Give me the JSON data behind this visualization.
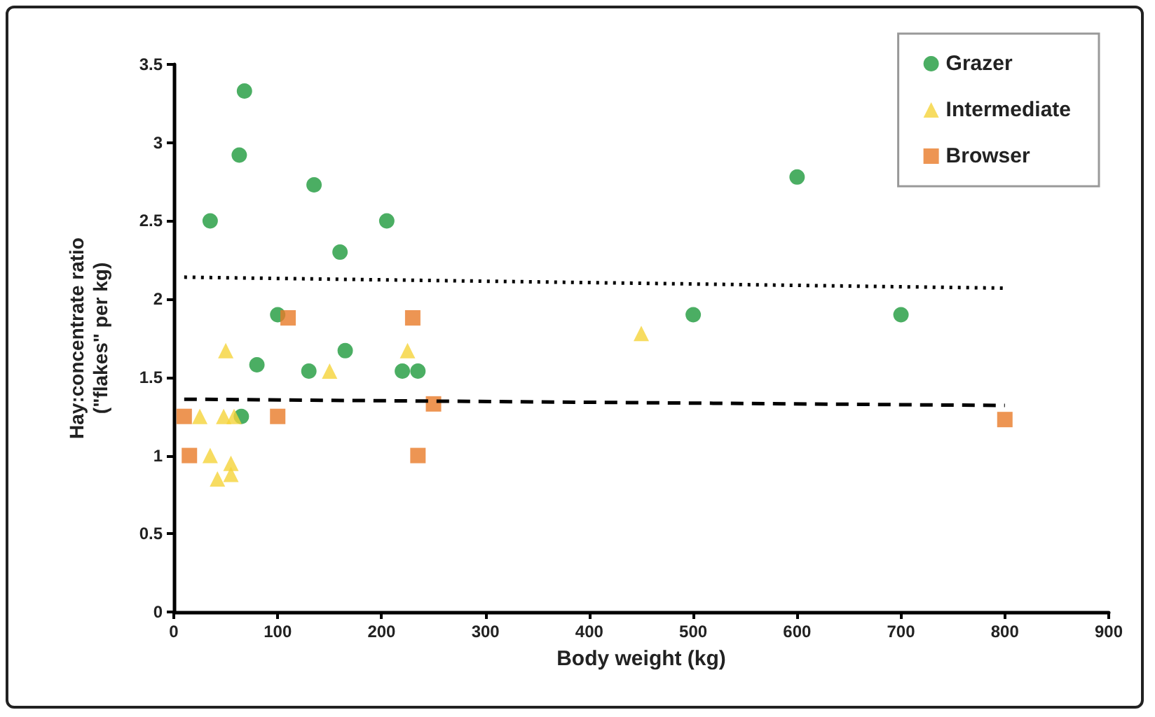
{
  "chart_data": {
    "type": "scatter",
    "xlabel": "Body weight (kg)",
    "ylabel": "Hay:concentrate ratio\n(\"flakes\" per kg)",
    "series": [
      {
        "name": "Grazer",
        "color": "#1e9a3c",
        "marker": "circle",
        "x": [
          68,
          63,
          35,
          135,
          160,
          205,
          100,
          80,
          130,
          165,
          220,
          235,
          65,
          500,
          600,
          700
        ],
        "values": [
          3.33,
          2.92,
          2.5,
          2.73,
          2.3,
          2.5,
          1.9,
          1.58,
          1.54,
          1.67,
          1.54,
          1.54,
          1.25,
          1.9,
          2.78,
          1.9
        ]
      },
      {
        "name": "Intermediate",
        "color": "#f5d33a",
        "marker": "triangle",
        "x": [
          50,
          25,
          48,
          58,
          35,
          42,
          55,
          55,
          150,
          225,
          450
        ],
        "values": [
          1.67,
          1.25,
          1.25,
          1.25,
          1.0,
          0.85,
          0.95,
          0.88,
          1.54,
          1.67,
          1.78
        ]
      },
      {
        "name": "Browser",
        "color": "#e87b28",
        "marker": "square",
        "x": [
          10,
          15,
          110,
          100,
          230,
          235,
          250,
          800
        ],
        "values": [
          1.25,
          1.0,
          1.88,
          1.25,
          1.88,
          1.0,
          1.33,
          1.23
        ]
      },
      {
        "type": "line",
        "color": "#000000",
        "line_style": "dotted",
        "marker": "none",
        "x": [
          10,
          800
        ],
        "values": [
          2.14,
          2.07
        ]
      },
      {
        "type": "line",
        "color": "#000000",
        "line_style": "dashed",
        "marker": "none",
        "x": [
          10,
          800
        ],
        "values": [
          1.36,
          1.32
        ]
      }
    ],
    "xlim": [
      0,
      900
    ],
    "xticks": [
      0,
      100,
      200,
      300,
      400,
      500,
      600,
      700,
      800,
      900
    ],
    "ylim": [
      0,
      3.5
    ],
    "yticks": [
      0,
      0.5,
      1,
      1.5,
      2,
      2.5,
      3,
      3.5
    ],
    "grid": false,
    "legend": "top right"
  }
}
